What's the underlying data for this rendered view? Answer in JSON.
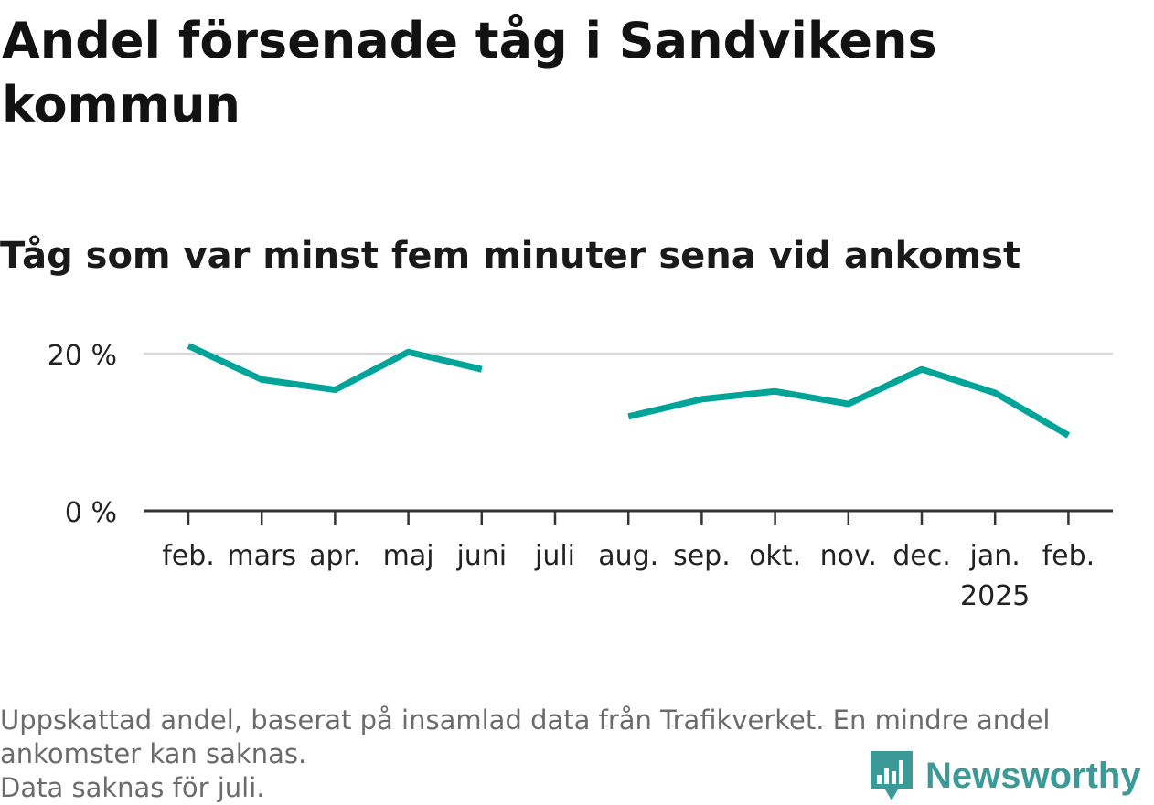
{
  "title": "Andel försenade tåg i Sandvikens kommun",
  "subtitle": "Tåg som var minst fem minuter sena vid ankomst",
  "notes": [
    "Uppskattad andel, baserat på insamlad data från Trafikverket. En mindre andel",
    "ankomster kan saknas.",
    "Data saknas för juli."
  ],
  "brand": {
    "name": "Newsworthy",
    "icon": "newsworthy-logo-icon"
  },
  "colors": {
    "line": "#00A499",
    "axis": "#333333",
    "grid": "#d9d9d9",
    "brand": "#3b9a98"
  },
  "chart_data": {
    "type": "line",
    "categories": [
      "feb.",
      "mars",
      "apr.",
      "maj",
      "juni",
      "juli",
      "aug.",
      "sep.",
      "okt.",
      "nov.",
      "dec.",
      "jan.",
      "feb."
    ],
    "category_sublabels": [
      "",
      "",
      "",
      "",
      "",
      "",
      "",
      "",
      "",
      "",
      "",
      "2025",
      ""
    ],
    "series": [
      {
        "values": [
          21.0,
          16.7,
          15.4,
          20.2,
          18.0,
          null,
          12.0,
          14.2,
          15.2,
          13.6,
          18.0,
          15.0,
          9.6
        ]
      }
    ],
    "yticks": [
      0,
      20
    ],
    "ytick_labels": [
      "0 %",
      "20 %"
    ],
    "ylim": [
      0,
      22
    ],
    "grid": true
  }
}
